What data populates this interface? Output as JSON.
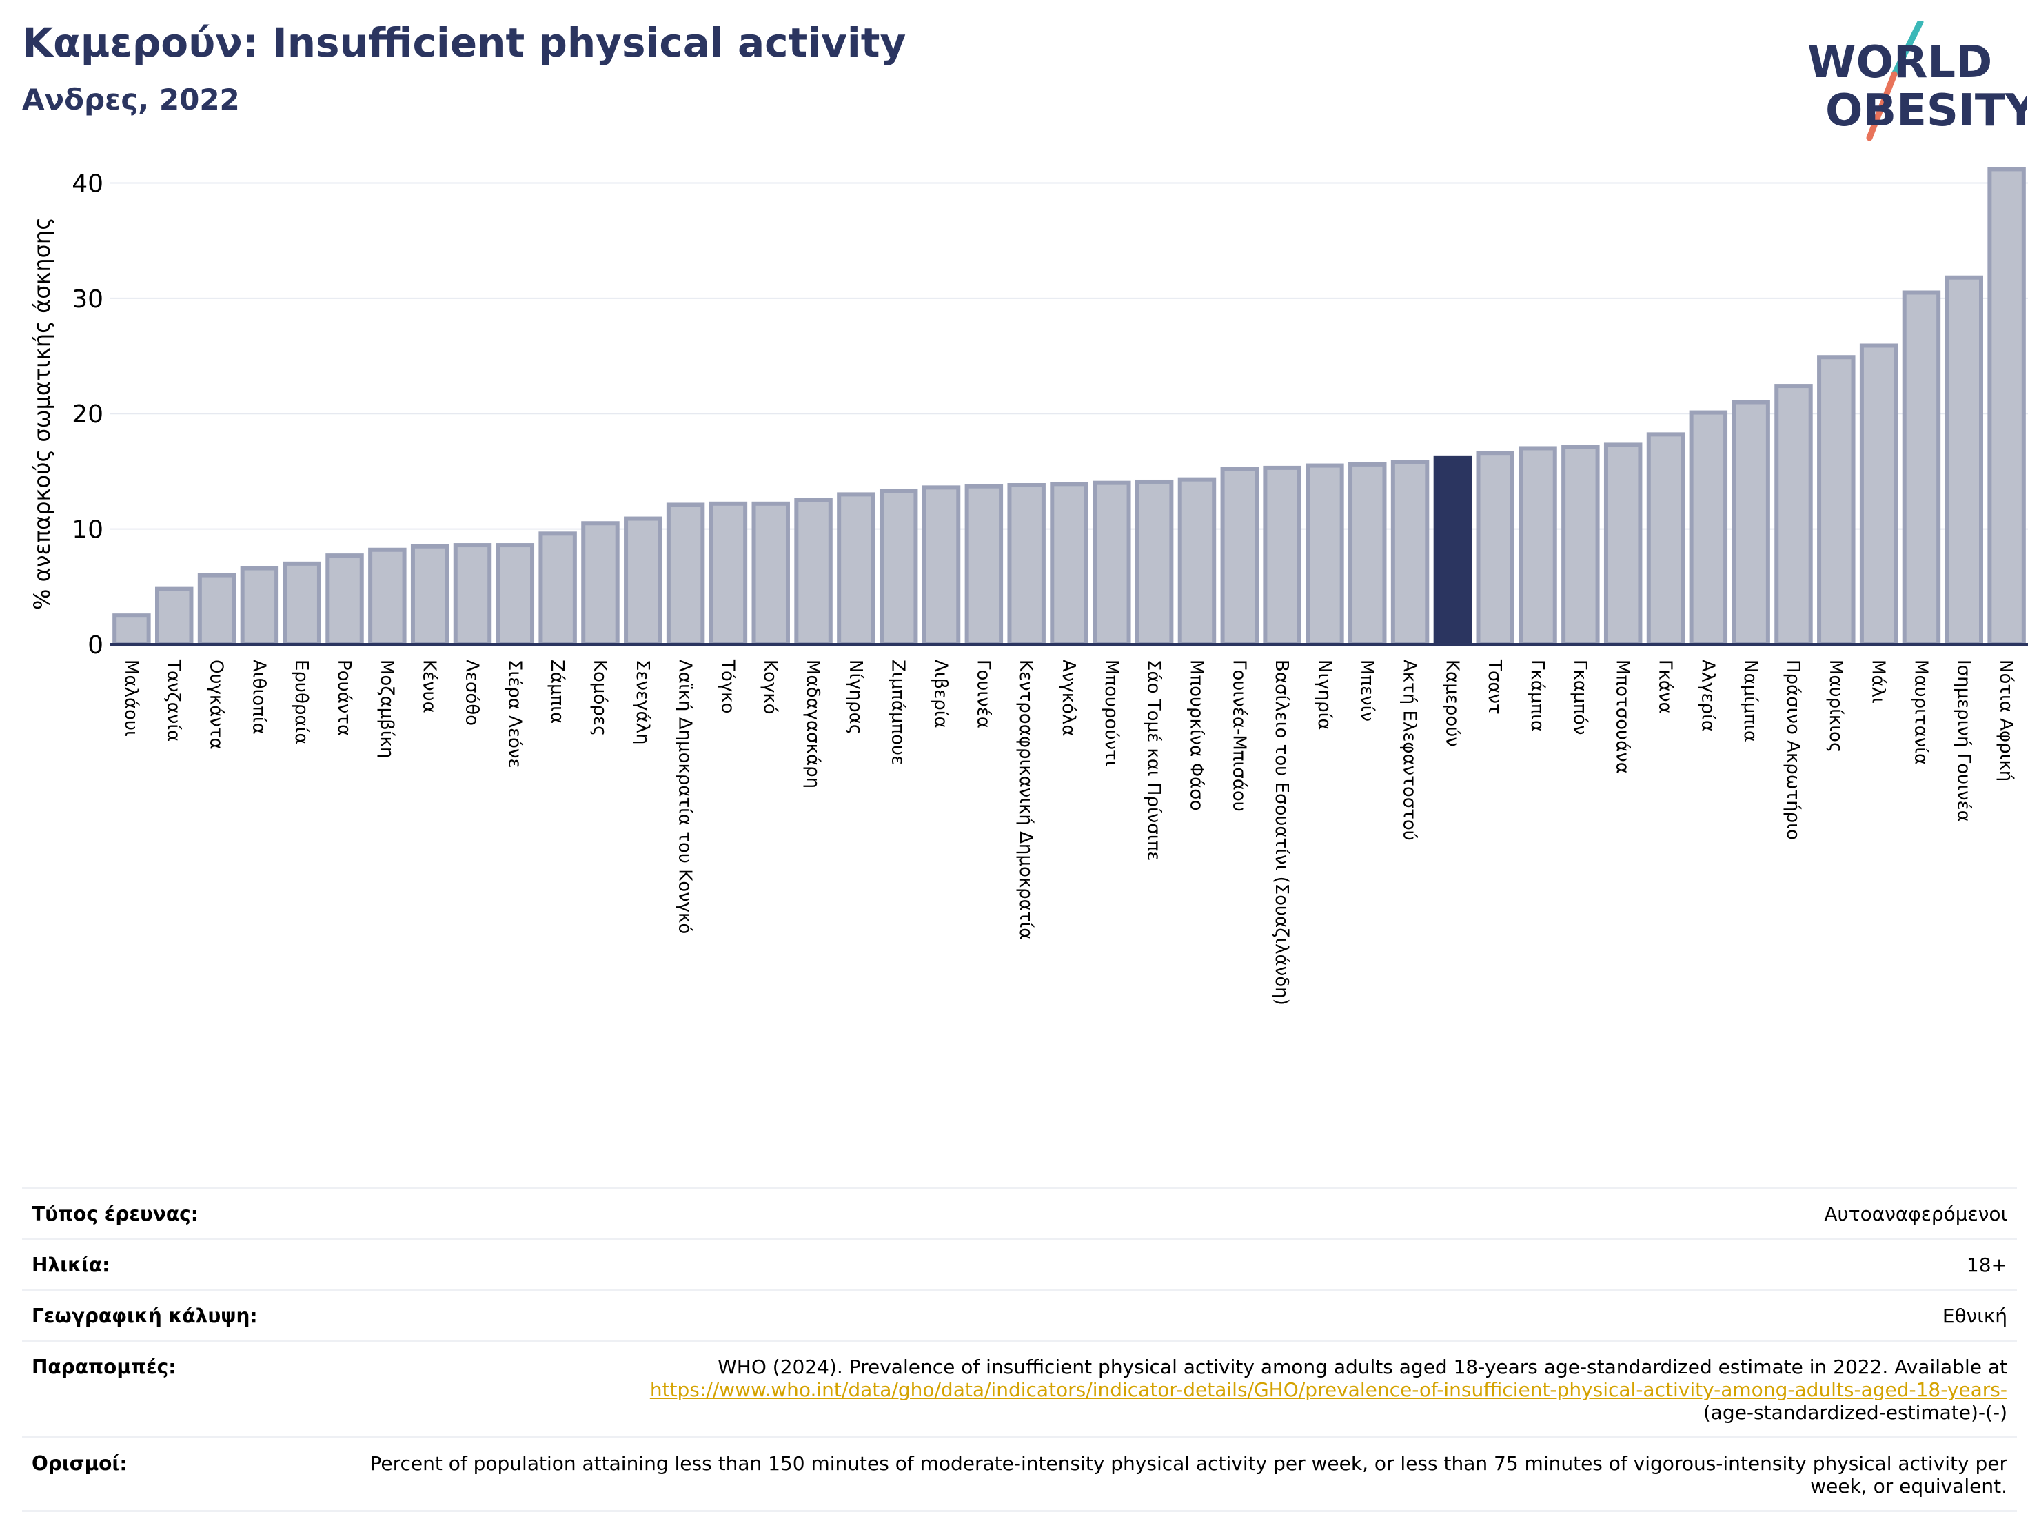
{
  "header": {
    "title": "Καμερούν: Insufficient physical activity",
    "subtitle": "Ανδρες, 2022"
  },
  "logo": {
    "line1": "WORLD",
    "line2": "OBESITY",
    "colors": {
      "text": "#2b3560",
      "slash_top": "#3bb8b8",
      "slash_bottom": "#e8735a"
    }
  },
  "colors": {
    "bar": "#bcc0cc",
    "bar_stroke": "#9ba1b8",
    "highlight": "#2b3560",
    "grid": "#e6e9f0",
    "axis": "#2b3560"
  },
  "chart_data": {
    "type": "bar",
    "ylabel": "% ανεπαρκούς σωματικής άσκησης",
    "ylim": [
      0,
      42
    ],
    "yticks": [
      0,
      10,
      20,
      30,
      40
    ],
    "grid": true,
    "highlight": "Καμερούν",
    "categories": [
      "Μαλάουι",
      "Τανζανία",
      "Ουγκάντα",
      "Αιθιοπία",
      "Ερυθραία",
      "Ρουάντα",
      "Μοζαμβίκη",
      "Κένυα",
      "Λεσόθο",
      "Σιέρα Λεόνε",
      "Ζάμπια",
      "Κομόρες",
      "Σενεγάλη",
      "Λαϊκή Δημοκρατία του Κονγκό",
      "Τόγκο",
      "Κογκό",
      "Μαδαγασκάρη",
      "Νίγηρας",
      "Ζιμπάμπουε",
      "Λιβερία",
      "Γουινέα",
      "Κεντροαφρικανική Δημοκρατία",
      "Ανγκόλα",
      "Μπουρούντι",
      "Σάο Τομέ και Πρίνσιπε",
      "Μπουρκίνα Φάσο",
      "Γουινέα-Μπισάου",
      "Βασίλειο του Εσουατίνι (Σουαζιλάνδη)",
      "Νιγηρία",
      "Μπενίν",
      "Ακτή Ελεφαντοστού",
      "Καμερούν",
      "Τσαντ",
      "Γκάμπια",
      "Γκαμπόν",
      "Μποτσουάνα",
      "Γκάνα",
      "Αλγερία",
      "Ναμίμπια",
      "Πράσινο Ακρωτήριο",
      "Μαυρίκιος",
      "Μάλι",
      "Μαυριτανία",
      "Ισημερινή Γουινέα",
      "Νότια Αφρική"
    ],
    "values": [
      2.5,
      4.8,
      6.0,
      6.6,
      7.0,
      7.7,
      8.2,
      8.5,
      8.6,
      8.6,
      9.6,
      10.5,
      10.9,
      12.1,
      12.2,
      12.2,
      12.5,
      13.0,
      13.3,
      13.6,
      13.7,
      13.8,
      13.9,
      14.0,
      14.1,
      14.3,
      15.2,
      15.3,
      15.5,
      15.6,
      15.8,
      16.2,
      16.6,
      17.0,
      17.1,
      17.3,
      18.2,
      20.1,
      21.0,
      22.4,
      24.9,
      25.9,
      30.5,
      31.8,
      41.2
    ]
  },
  "info": {
    "survey_type": {
      "label": "Τύπος έρευνας:",
      "value": "Αυτοαναφερόμενοι"
    },
    "age": {
      "label": "Ηλικία:",
      "value": "18+"
    },
    "coverage": {
      "label": "Γεωγραφική κάλυψη:",
      "value": "Εθνική"
    },
    "references": {
      "label": "Παραπομπές:",
      "text": "WHO (2024). Prevalence of insufficient physical activity among adults aged 18-years age-standardized estimate in 2022. Available at",
      "link": "https://www.who.int/data/gho/data/indicators/indicator-details/GHO/prevalence-of-insufficient-physical-activity-among-adults-aged-18-years-",
      "tail": "(age-standardized-estimate)-(-)"
    },
    "definitions": {
      "label": "Ορισμοί:",
      "value": "Percent of population attaining less than 150 minutes of moderate-intensity physical activity per week, or less than 75 minutes of vigorous-intensity physical activity per week, or equivalent."
    }
  }
}
